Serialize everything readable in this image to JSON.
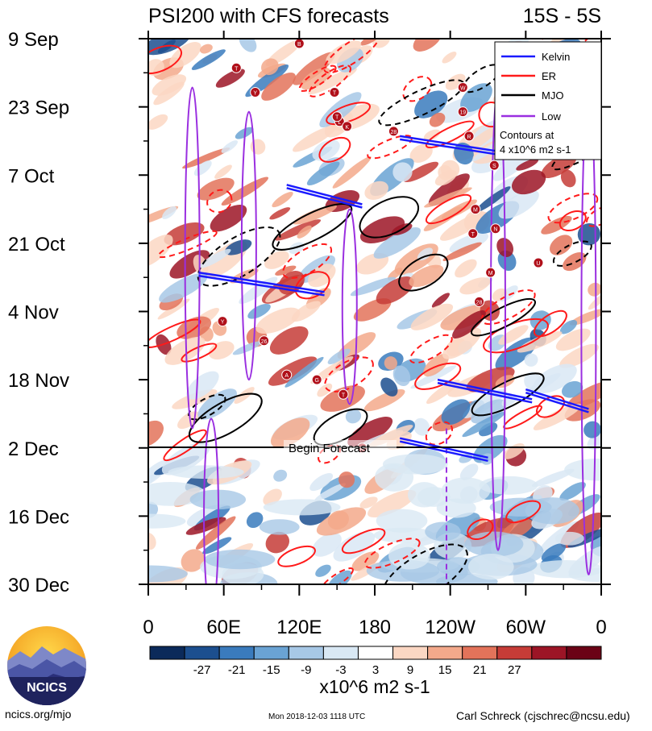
{
  "chart_data": {
    "type": "heatmap",
    "title": "PSI200 with CFS forecasts",
    "region": "15S - 5S",
    "x_tick_labels": [
      "0",
      "60E",
      "120E",
      "180",
      "120W",
      "60W",
      "0"
    ],
    "x_ticks_deg": [
      0,
      60,
      120,
      180,
      240,
      300,
      360
    ],
    "y_tick_labels": [
      "9 Sep",
      "23 Sep",
      "7 Oct",
      "21 Oct",
      "4 Nov",
      "18 Nov",
      "2 Dec",
      "16 Dec",
      "30 Dec"
    ],
    "y_ticks_day": [
      0,
      14,
      28,
      42,
      56,
      70,
      84,
      98,
      112
    ],
    "y_range_days": [
      0,
      112
    ],
    "forecast_start": {
      "day": 84,
      "label": "Begin Forecast"
    },
    "colorbar": {
      "unit_label": "x10^6 m2 s-1",
      "tick_labels": [
        "-27",
        "-21",
        "-15",
        "-9",
        "-3",
        "3",
        "9",
        "15",
        "21",
        "27"
      ],
      "colors": [
        "#0b2a5a",
        "#1c4f8f",
        "#3a7bbd",
        "#6aa3d4",
        "#a7c8e6",
        "#d9e8f4",
        "#ffffff",
        "#fbd7c3",
        "#f3a98b",
        "#e3735a",
        "#c63c37",
        "#9c1526",
        "#6b0316"
      ]
    },
    "legend": {
      "placement": "top-right",
      "entries": [
        {
          "name": "Kelvin",
          "color": "#1a1aff"
        },
        {
          "name": "ER",
          "color": "#ff1a1a"
        },
        {
          "name": "MJO",
          "color": "#000000"
        },
        {
          "name": "Low",
          "color": "#9a2fe0"
        }
      ],
      "note_line1": "Contours at",
      "note_line2": "4 x10^6 m2 s-1"
    },
    "cyclone_labels": [
      "B",
      "T",
      "Y",
      "T",
      "L",
      "T",
      "28",
      "K",
      "W",
      "19",
      "R",
      "S",
      "M",
      "T",
      "N",
      "M",
      "28",
      "Y",
      "26",
      "A",
      "G",
      "T",
      "U",
      "M",
      "O",
      "W"
    ]
  },
  "footer": {
    "left": "ncics.org/mjo",
    "center": "Mon 2018-12-03 1118 UTC",
    "right": "Carl Schreck (cjschrec@ncsu.edu)",
    "logo_text": "NCICS"
  }
}
